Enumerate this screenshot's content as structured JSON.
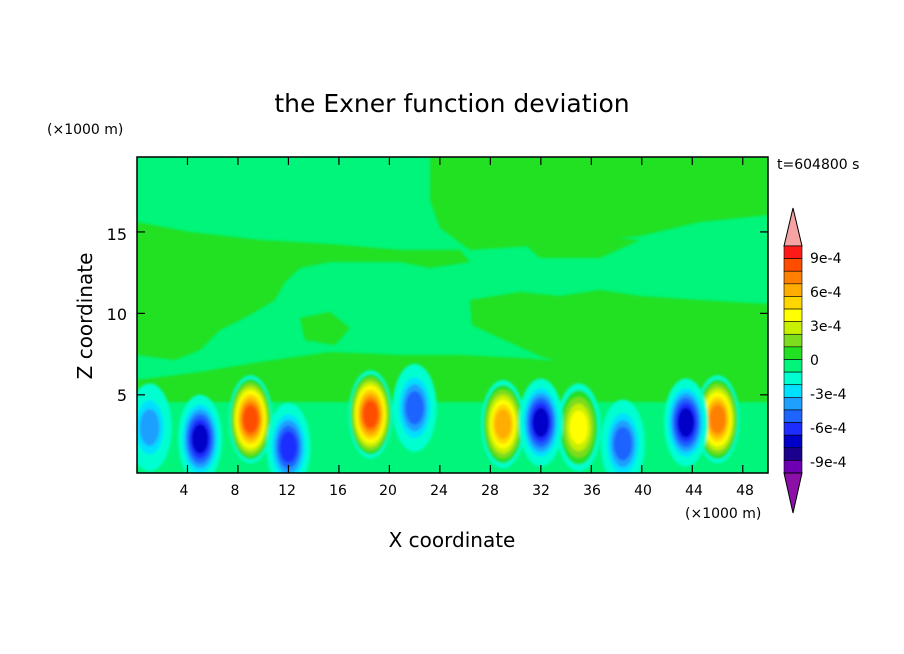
{
  "chart_data": {
    "type": "heatmap",
    "title": "the Exner function deviation",
    "xlabel": "X coordinate",
    "ylabel": "Z coordinate",
    "x_unit": "(×1000 m)",
    "y_unit": "(×1000 m)",
    "time_label": "t=604800 s",
    "xlim": [
      0,
      50
    ],
    "ylim": [
      0.2,
      19.6
    ],
    "x_ticks": [
      "4",
      "8",
      "12",
      "16",
      "20",
      "24",
      "28",
      "32",
      "36",
      "40",
      "44",
      "48"
    ],
    "y_ticks": [
      "5",
      "10",
      "15"
    ],
    "colorbar": {
      "labels": [
        "9e-4",
        "6e-4",
        "3e-4",
        "0",
        "-3e-4",
        "-6e-4",
        "-9e-4"
      ],
      "colors_high_to_low": [
        "#f5a3a3",
        "#ff1a1a",
        "#ff4d00",
        "#ff8000",
        "#ffad00",
        "#ffd700",
        "#ffff00",
        "#c8f000",
        "#7ddc1e",
        "#22e022",
        "#00f57a",
        "#00ffd0",
        "#00e0ff",
        "#1ea0ff",
        "#1e64ff",
        "#1e2dff",
        "#0000c8",
        "#1a008c",
        "#6e00b4",
        "#8c10a8"
      ]
    },
    "cells": [
      {
        "x": 9,
        "z": 3.5,
        "value": 0.0008
      },
      {
        "x": 18.5,
        "z": 3.8,
        "value": 0.0008
      },
      {
        "x": 29,
        "z": 3.2,
        "value": 0.0006
      },
      {
        "x": 46,
        "z": 3.5,
        "value": 0.0007
      },
      {
        "x": 35,
        "z": 3,
        "value": 0.0004
      },
      {
        "x": 5,
        "z": 2.3,
        "value": -0.0006
      },
      {
        "x": 12,
        "z": 1.8,
        "value": -0.0005
      },
      {
        "x": 32,
        "z": 3.3,
        "value": -0.0006
      },
      {
        "x": 43.5,
        "z": 3.3,
        "value": -0.0006
      },
      {
        "x": 38.5,
        "z": 2,
        "value": -0.0004
      },
      {
        "x": 1,
        "z": 3,
        "value": -0.0003
      },
      {
        "x": 22,
        "z": 4.2,
        "value": -0.0004
      }
    ]
  }
}
